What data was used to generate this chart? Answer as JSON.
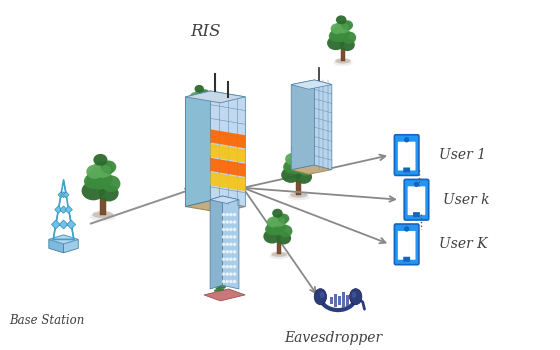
{
  "bg_color": "#ffffff",
  "ris_label": "RIS",
  "bs_label": "Base Station",
  "user1_label": "User 1",
  "userk_label": "User k",
  "userK_label": "User K",
  "eve_label": "Eavesdropper",
  "arrow_color": "#8a8a8a",
  "phone_color_face": "#2196F3",
  "phone_color_dark": "#1565C0",
  "phone_color_light": "#90CAF9",
  "ris_panel_yellow": "#F5C518",
  "ris_panel_orange": "#FF6600",
  "building_blue_light": "#B8D8F0",
  "building_blue_mid": "#88B8D8",
  "building_blue_dark": "#5888A8",
  "building_top": "#C8D8E0",
  "building_base": "#C8B888",
  "tree_trunk_color": "#7B5030",
  "tree_dark": "#2D6A2D",
  "tree_mid": "#3D8B3D",
  "tree_light": "#5AAA5A",
  "bs_blue": "#5BB8D8",
  "bs_light": "#A8D8F0",
  "headphone_color": "#2C3E7A",
  "headphone_bar": "#4A5DAA"
}
